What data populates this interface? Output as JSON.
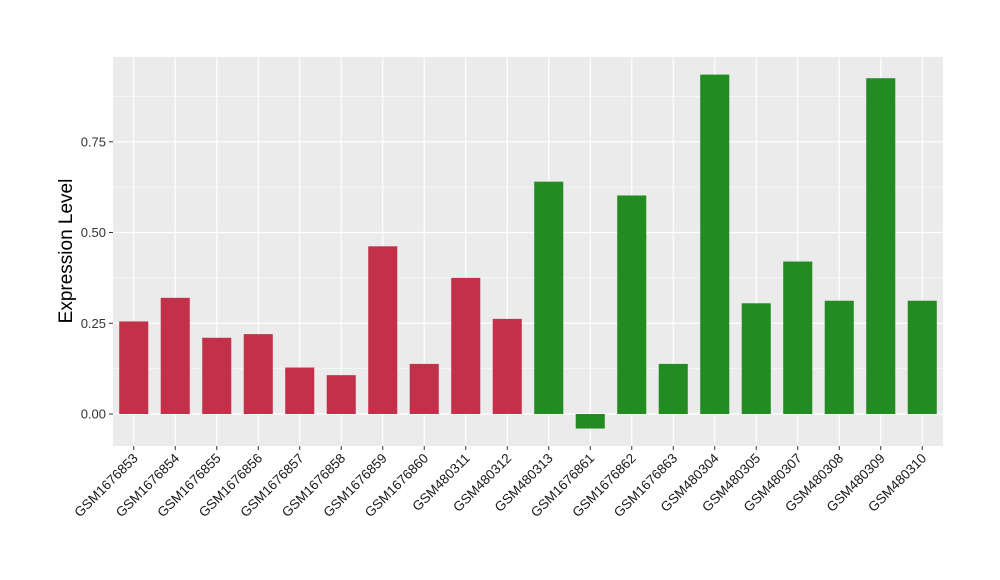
{
  "chart_data": {
    "type": "bar",
    "title": "",
    "xlabel": "",
    "ylabel": "Expression Level",
    "ylim": [
      -0.1,
      0.97
    ],
    "yticks": [
      0.0,
      0.25,
      0.5,
      0.75
    ],
    "ytick_labels": [
      "0.00",
      "0.25",
      "0.50",
      "0.75"
    ],
    "grid": true,
    "legend": "none",
    "categories": [
      "GSM1676853",
      "GSM1676854",
      "GSM1676855",
      "GSM1676856",
      "GSM1676857",
      "GSM1676858",
      "GSM1676859",
      "GSM1676860",
      "GSM480311",
      "GSM480312",
      "GSM480313",
      "GSM1676861",
      "GSM1676862",
      "GSM1676863",
      "GSM480304",
      "GSM480305",
      "GSM480307",
      "GSM480308",
      "GSM480309",
      "GSM480310"
    ],
    "values": [
      0.255,
      0.32,
      0.21,
      0.22,
      0.128,
      0.107,
      0.462,
      0.138,
      0.375,
      0.262,
      0.64,
      -0.04,
      0.602,
      0.138,
      0.935,
      0.305,
      0.42,
      0.312,
      0.925,
      0.312
    ],
    "groups": [
      "a",
      "a",
      "a",
      "a",
      "a",
      "a",
      "a",
      "a",
      "a",
      "a",
      "b",
      "b",
      "b",
      "b",
      "b",
      "b",
      "b",
      "b",
      "b",
      "b"
    ],
    "group_colors": {
      "a": "#c3304a",
      "b": "#228b22"
    },
    "panel_color": "#ebebeb",
    "grid_color": "#ffffff"
  }
}
